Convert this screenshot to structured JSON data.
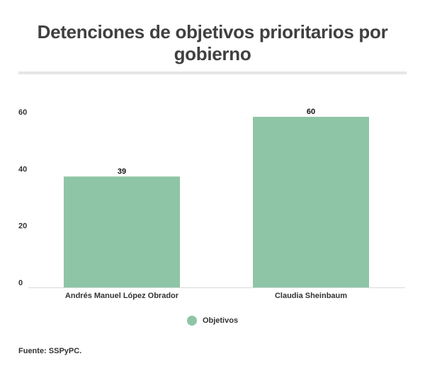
{
  "chart_data": {
    "type": "bar",
    "title": "Detenciones de objetivos prioritarios por gobierno",
    "categories": [
      "Andrés Manuel López Obrador",
      "Claudia Sheinbaum"
    ],
    "series": [
      {
        "name": "Objetivos",
        "values": [
          39,
          60
        ],
        "color": "#8ec5a6"
      }
    ],
    "ylim": [
      0,
      62
    ],
    "yticks": [
      "0",
      "20",
      "40",
      "60"
    ],
    "xlabel": "",
    "ylabel": "",
    "grid": false,
    "legend_position": "bottom-center",
    "source": "Fuente: SSPyPC."
  }
}
